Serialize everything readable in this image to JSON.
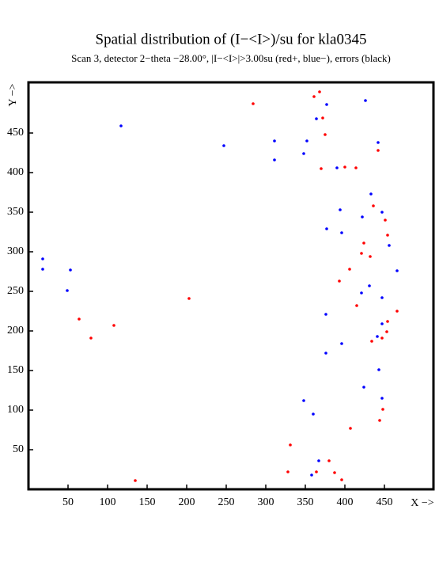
{
  "chart_data": {
    "type": "scatter",
    "title": "Spatial distribution of (I−<I>)/su for kla0345",
    "subtitle": "Scan  3, detector 2−theta −28.00°, |I−<I>|>3.00su (red+, blue−), errors (black)",
    "x_label": "X −>",
    "y_label": "Y −>",
    "xlim": [
      0,
      512
    ],
    "ylim": [
      0,
      512
    ],
    "xticks": [
      50,
      100,
      150,
      200,
      250,
      300,
      350,
      400,
      450
    ],
    "yticks": [
      50,
      100,
      150,
      200,
      250,
      300,
      350,
      400,
      450
    ],
    "series": [
      {
        "color": "#0000ff",
        "x": [
          117,
          247,
          311,
          311,
          348,
          352,
          377,
          364,
          426,
          442,
          390,
          433,
          422,
          394,
          447,
          377,
          396,
          456,
          466,
          18,
          18,
          53,
          49,
          421,
          431,
          447,
          376,
          441,
          447,
          396,
          376,
          443,
          424,
          348,
          360,
          447,
          358,
          367
        ],
        "values": [
          459,
          434,
          440,
          416,
          424,
          440,
          486,
          468,
          491,
          438,
          406,
          373,
          344,
          353,
          350,
          329,
          324,
          308,
          276,
          291,
          278,
          277,
          251,
          248,
          257,
          242,
          221,
          193,
          209,
          184,
          172,
          151,
          129,
          112,
          95,
          115,
          18,
          36
        ]
      },
      {
        "color": "#ff0000",
        "x": [
          284,
          361,
          368,
          372,
          375,
          442,
          370,
          400,
          414,
          436,
          451,
          454,
          424,
          421,
          432,
          406,
          393,
          415,
          203,
          64,
          108,
          79,
          454,
          466,
          453,
          434,
          447,
          448,
          444,
          407,
          331,
          328,
          364,
          380,
          387,
          396,
          135
        ],
        "values": [
          487,
          496,
          502,
          469,
          448,
          428,
          405,
          407,
          406,
          358,
          340,
          321,
          311,
          298,
          294,
          278,
          263,
          232,
          241,
          215,
          207,
          191,
          212,
          225,
          199,
          187,
          191,
          101,
          87,
          77,
          56,
          22,
          22,
          36,
          21,
          12,
          11
        ]
      }
    ]
  }
}
